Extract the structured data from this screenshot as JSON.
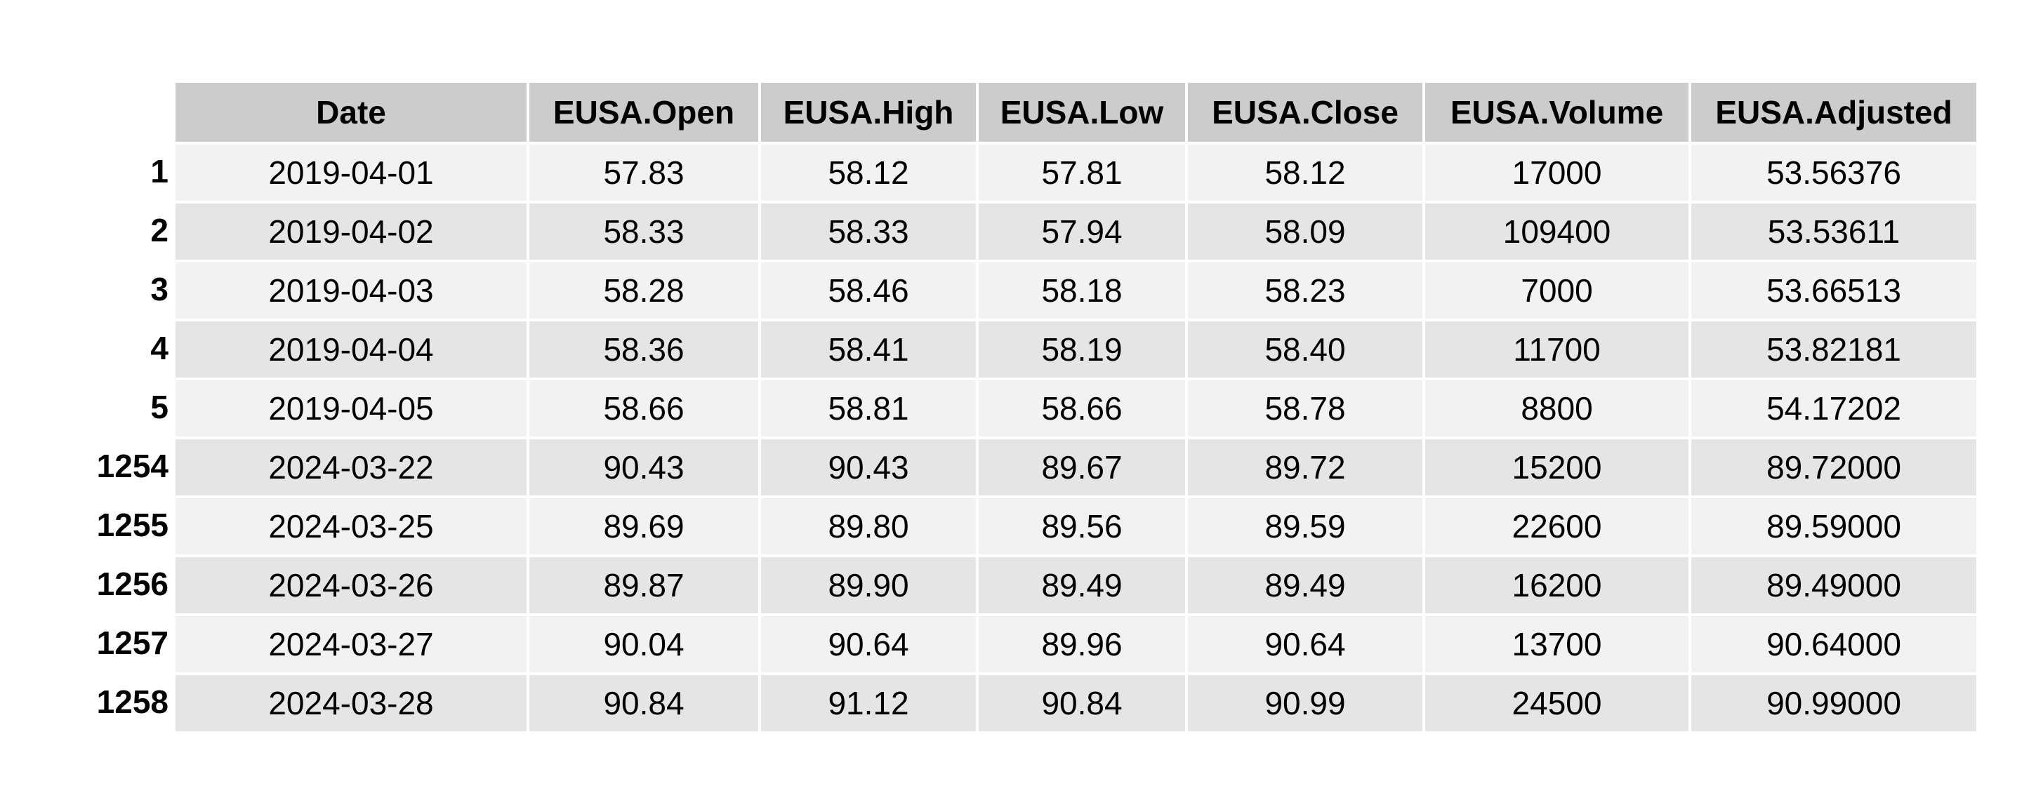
{
  "chart_data": {
    "type": "table",
    "columns": [
      "Date",
      "EUSA.Open",
      "EUSA.High",
      "EUSA.Low",
      "EUSA.Close",
      "EUSA.Volume",
      "EUSA.Adjusted"
    ],
    "row_names": [
      "1",
      "2",
      "3",
      "4",
      "5",
      "1254",
      "1255",
      "1256",
      "1257",
      "1258"
    ],
    "rows": [
      [
        "2019-04-01",
        "57.83",
        "58.12",
        "57.81",
        "58.12",
        "17000",
        "53.56376"
      ],
      [
        "2019-04-02",
        "58.33",
        "58.33",
        "57.94",
        "58.09",
        "109400",
        "53.53611"
      ],
      [
        "2019-04-03",
        "58.28",
        "58.46",
        "58.18",
        "58.23",
        "7000",
        "53.66513"
      ],
      [
        "2019-04-04",
        "58.36",
        "58.41",
        "58.19",
        "58.40",
        "11700",
        "53.82181"
      ],
      [
        "2019-04-05",
        "58.66",
        "58.81",
        "58.66",
        "58.78",
        "8800",
        "54.17202"
      ],
      [
        "2024-03-22",
        "90.43",
        "90.43",
        "89.67",
        "89.72",
        "15200",
        "89.72000"
      ],
      [
        "2024-03-25",
        "89.69",
        "89.80",
        "89.56",
        "89.59",
        "22600",
        "89.59000"
      ],
      [
        "2024-03-26",
        "89.87",
        "89.90",
        "89.49",
        "89.49",
        "16200",
        "89.49000"
      ],
      [
        "2024-03-27",
        "90.04",
        "90.64",
        "89.96",
        "90.64",
        "13700",
        "90.64000"
      ],
      [
        "2024-03-28",
        "90.84",
        "91.12",
        "90.84",
        "90.99",
        "24500",
        "90.99000"
      ]
    ]
  },
  "colors": {
    "header_bg": "#cccccc",
    "row_light": "#f2f2f2",
    "row_dark": "#e5e5e5",
    "text": "#000000",
    "grid": "#ffffff"
  }
}
